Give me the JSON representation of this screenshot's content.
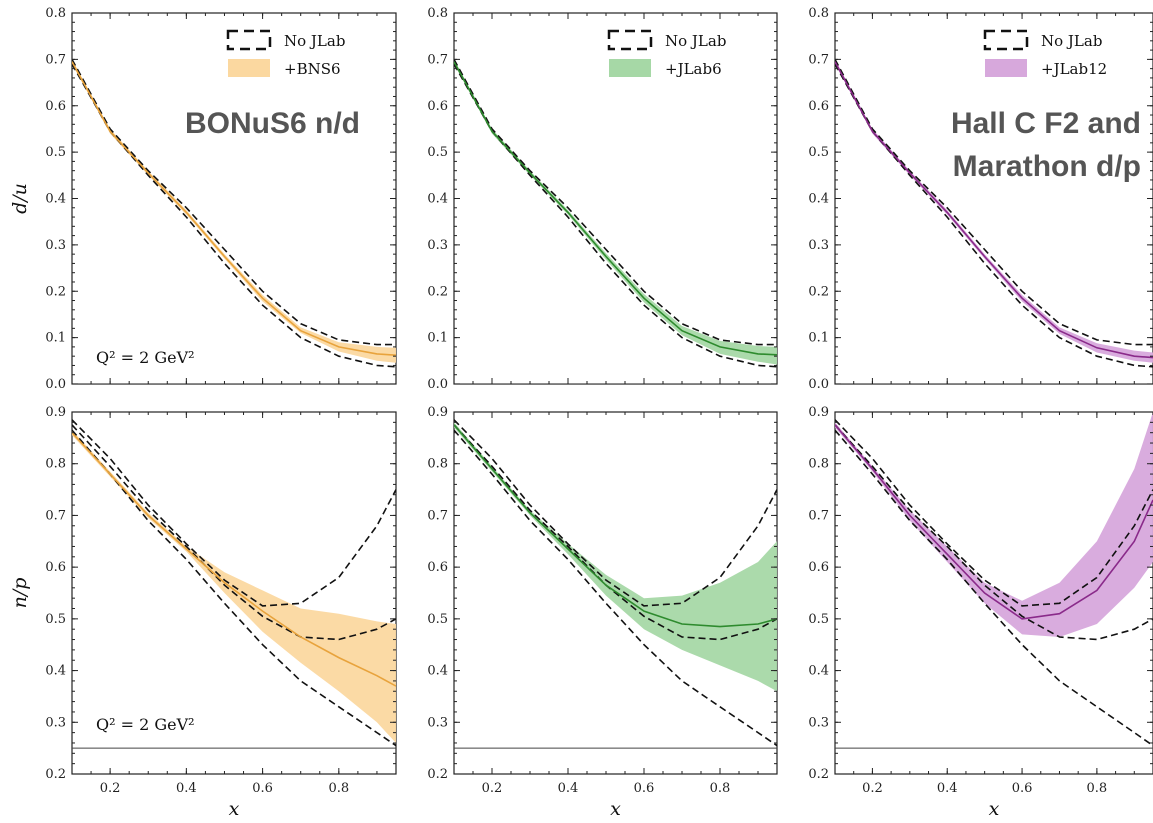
{
  "figure": {
    "x_axis_label": "x",
    "overlay_texts": [
      {
        "panel": 0,
        "lines": [
          "BONuS6 n/d"
        ]
      },
      {
        "panel": 2,
        "lines": [
          "Hall C F2 and",
          "Marathon d/p"
        ]
      }
    ]
  },
  "chart_data": [
    {
      "type": "line",
      "row": "top",
      "ylabel": "d/u",
      "xlim": [
        0.1,
        0.95
      ],
      "ylim": [
        0.0,
        0.8
      ],
      "xticks": [
        0.2,
        0.4,
        0.6,
        0.8
      ],
      "yticks": [
        0.0,
        0.1,
        0.2,
        0.3,
        0.4,
        0.5,
        0.6,
        0.7,
        0.8
      ],
      "annotation": "Q² = 2 GeV²",
      "legend": {
        "position": "top-right",
        "entries": [
          "No JLab",
          "+BNS6"
        ]
      },
      "color": "#e8a33c",
      "fill": "#fbd8a0",
      "series": [
        {
          "style": "dashed",
          "x": [
            0.1,
            0.2,
            0.3,
            0.4,
            0.5,
            0.6,
            0.7,
            0.8,
            0.9,
            0.95
          ],
          "y": [
            0.7,
            0.55,
            0.46,
            0.38,
            0.29,
            0.2,
            0.13,
            0.095,
            0.085,
            0.085
          ]
        },
        {
          "style": "dashed",
          "x": [
            0.1,
            0.2,
            0.3,
            0.4,
            0.5,
            0.6,
            0.7,
            0.8,
            0.9,
            0.95
          ],
          "y": [
            0.69,
            0.545,
            0.45,
            0.36,
            0.26,
            0.17,
            0.1,
            0.06,
            0.04,
            0.037
          ]
        },
        {
          "name": "+BNS6",
          "style": "solid",
          "x": [
            0.1,
            0.2,
            0.3,
            0.4,
            0.5,
            0.6,
            0.7,
            0.8,
            0.9,
            0.95
          ],
          "y": [
            0.695,
            0.545,
            0.455,
            0.37,
            0.275,
            0.185,
            0.115,
            0.08,
            0.065,
            0.062
          ],
          "lower": [
            0.69,
            0.54,
            0.45,
            0.365,
            0.27,
            0.178,
            0.11,
            0.07,
            0.05,
            0.046
          ],
          "upper": [
            0.7,
            0.55,
            0.46,
            0.375,
            0.28,
            0.192,
            0.122,
            0.09,
            0.08,
            0.078
          ]
        }
      ]
    },
    {
      "type": "line",
      "row": "top",
      "ylabel": "",
      "xlim": [
        0.1,
        0.95
      ],
      "ylim": [
        0.0,
        0.8
      ],
      "xticks": [
        0.2,
        0.4,
        0.6,
        0.8
      ],
      "yticks": [
        0.0,
        0.1,
        0.2,
        0.3,
        0.4,
        0.5,
        0.6,
        0.7,
        0.8
      ],
      "annotation": "",
      "legend": {
        "position": "top-right",
        "entries": [
          "No JLab",
          "+JLab6"
        ]
      },
      "color": "#2e8b2e",
      "fill": "#a6d8a6",
      "series": [
        {
          "style": "dashed",
          "x": [
            0.1,
            0.2,
            0.3,
            0.4,
            0.5,
            0.6,
            0.7,
            0.8,
            0.9,
            0.95
          ],
          "y": [
            0.7,
            0.55,
            0.46,
            0.38,
            0.29,
            0.2,
            0.13,
            0.095,
            0.085,
            0.085
          ]
        },
        {
          "style": "dashed",
          "x": [
            0.1,
            0.2,
            0.3,
            0.4,
            0.5,
            0.6,
            0.7,
            0.8,
            0.9,
            0.95
          ],
          "y": [
            0.69,
            0.545,
            0.45,
            0.36,
            0.26,
            0.17,
            0.1,
            0.06,
            0.04,
            0.037
          ]
        },
        {
          "name": "+JLab6",
          "style": "solid",
          "x": [
            0.1,
            0.2,
            0.3,
            0.4,
            0.5,
            0.6,
            0.7,
            0.8,
            0.9,
            0.95
          ],
          "y": [
            0.695,
            0.545,
            0.455,
            0.37,
            0.275,
            0.185,
            0.115,
            0.08,
            0.065,
            0.063
          ],
          "lower": [
            0.69,
            0.54,
            0.45,
            0.365,
            0.268,
            0.176,
            0.105,
            0.065,
            0.048,
            0.042
          ],
          "upper": [
            0.7,
            0.55,
            0.46,
            0.375,
            0.282,
            0.194,
            0.125,
            0.093,
            0.082,
            0.08
          ]
        }
      ]
    },
    {
      "type": "line",
      "row": "top",
      "ylabel": "",
      "xlim": [
        0.1,
        0.95
      ],
      "ylim": [
        0.0,
        0.8
      ],
      "xticks": [
        0.2,
        0.4,
        0.6,
        0.8
      ],
      "yticks": [
        0.0,
        0.1,
        0.2,
        0.3,
        0.4,
        0.5,
        0.6,
        0.7,
        0.8
      ],
      "annotation": "",
      "legend": {
        "position": "top-right",
        "entries": [
          "No JLab",
          "+JLab12"
        ]
      },
      "color": "#8a2a8a",
      "fill": "#d7a8dc",
      "series": [
        {
          "style": "dashed",
          "x": [
            0.1,
            0.2,
            0.3,
            0.4,
            0.5,
            0.6,
            0.7,
            0.8,
            0.9,
            0.95
          ],
          "y": [
            0.7,
            0.55,
            0.46,
            0.38,
            0.29,
            0.2,
            0.13,
            0.095,
            0.085,
            0.085
          ]
        },
        {
          "style": "dashed",
          "x": [
            0.1,
            0.2,
            0.3,
            0.4,
            0.5,
            0.6,
            0.7,
            0.8,
            0.9,
            0.95
          ],
          "y": [
            0.69,
            0.545,
            0.45,
            0.36,
            0.26,
            0.17,
            0.1,
            0.06,
            0.04,
            0.037
          ]
        },
        {
          "name": "+JLab12",
          "style": "solid",
          "x": [
            0.1,
            0.2,
            0.3,
            0.4,
            0.5,
            0.6,
            0.7,
            0.8,
            0.9,
            0.95
          ],
          "y": [
            0.695,
            0.545,
            0.455,
            0.37,
            0.275,
            0.185,
            0.115,
            0.078,
            0.06,
            0.057
          ],
          "lower": [
            0.69,
            0.54,
            0.45,
            0.365,
            0.27,
            0.178,
            0.108,
            0.068,
            0.05,
            0.046
          ],
          "upper": [
            0.7,
            0.55,
            0.46,
            0.375,
            0.28,
            0.192,
            0.122,
            0.088,
            0.072,
            0.068
          ]
        }
      ]
    },
    {
      "type": "line",
      "row": "bottom",
      "ylabel": "n/p",
      "xlim": [
        0.1,
        0.95
      ],
      "ylim": [
        0.2,
        0.9
      ],
      "xticks": [
        0.2,
        0.4,
        0.6,
        0.8
      ],
      "yticks": [
        0.2,
        0.3,
        0.4,
        0.5,
        0.6,
        0.7,
        0.8,
        0.9
      ],
      "annotation": "Q² = 2 GeV²",
      "hline": 0.25,
      "color": "#e8a33c",
      "fill": "#fbd8a0",
      "series": [
        {
          "style": "dashed",
          "x": [
            0.1,
            0.2,
            0.3,
            0.4,
            0.5,
            0.6,
            0.7,
            0.8,
            0.9,
            0.95
          ],
          "y": [
            0.885,
            0.81,
            0.72,
            0.645,
            0.575,
            0.525,
            0.53,
            0.58,
            0.68,
            0.75
          ]
        },
        {
          "style": "dashed",
          "x": [
            0.1,
            0.2,
            0.3,
            0.4,
            0.5,
            0.6,
            0.7,
            0.8,
            0.9,
            0.95
          ],
          "y": [
            0.875,
            0.795,
            0.71,
            0.64,
            0.565,
            0.505,
            0.465,
            0.46,
            0.48,
            0.5
          ]
        },
        {
          "style": "dashed",
          "x": [
            0.1,
            0.2,
            0.3,
            0.4,
            0.5,
            0.6,
            0.7,
            0.8,
            0.9,
            0.95
          ],
          "y": [
            0.865,
            0.78,
            0.69,
            0.615,
            0.53,
            0.45,
            0.38,
            0.33,
            0.28,
            0.255
          ]
        },
        {
          "name": "+BNS6",
          "style": "solid",
          "x": [
            0.1,
            0.2,
            0.3,
            0.4,
            0.5,
            0.6,
            0.7,
            0.8,
            0.9,
            0.95
          ],
          "y": [
            0.86,
            0.78,
            0.7,
            0.635,
            0.57,
            0.515,
            0.465,
            0.425,
            0.39,
            0.37
          ],
          "lower": [
            0.855,
            0.775,
            0.695,
            0.63,
            0.55,
            0.475,
            0.415,
            0.36,
            0.3,
            0.26
          ],
          "upper": [
            0.865,
            0.785,
            0.705,
            0.64,
            0.59,
            0.555,
            0.52,
            0.51,
            0.495,
            0.49
          ]
        }
      ]
    },
    {
      "type": "line",
      "row": "bottom",
      "ylabel": "",
      "xlim": [
        0.1,
        0.95
      ],
      "ylim": [
        0.2,
        0.9
      ],
      "xticks": [
        0.2,
        0.4,
        0.6,
        0.8
      ],
      "yticks": [
        0.2,
        0.3,
        0.4,
        0.5,
        0.6,
        0.7,
        0.8,
        0.9
      ],
      "annotation": "",
      "hline": 0.25,
      "color": "#2e8b2e",
      "fill": "#a6d8a6",
      "series": [
        {
          "style": "dashed",
          "x": [
            0.1,
            0.2,
            0.3,
            0.4,
            0.5,
            0.6,
            0.7,
            0.8,
            0.9,
            0.95
          ],
          "y": [
            0.885,
            0.81,
            0.72,
            0.645,
            0.575,
            0.525,
            0.53,
            0.58,
            0.68,
            0.75
          ]
        },
        {
          "style": "dashed",
          "x": [
            0.1,
            0.2,
            0.3,
            0.4,
            0.5,
            0.6,
            0.7,
            0.8,
            0.9,
            0.95
          ],
          "y": [
            0.875,
            0.795,
            0.71,
            0.64,
            0.565,
            0.505,
            0.465,
            0.46,
            0.48,
            0.5
          ]
        },
        {
          "style": "dashed",
          "x": [
            0.1,
            0.2,
            0.3,
            0.4,
            0.5,
            0.6,
            0.7,
            0.8,
            0.9,
            0.95
          ],
          "y": [
            0.865,
            0.78,
            0.69,
            0.615,
            0.53,
            0.45,
            0.38,
            0.33,
            0.28,
            0.255
          ]
        },
        {
          "name": "+JLab6",
          "style": "solid",
          "x": [
            0.1,
            0.2,
            0.3,
            0.4,
            0.5,
            0.6,
            0.7,
            0.8,
            0.9,
            0.95
          ],
          "y": [
            0.875,
            0.79,
            0.705,
            0.635,
            0.565,
            0.515,
            0.49,
            0.485,
            0.49,
            0.5
          ],
          "lower": [
            0.87,
            0.785,
            0.7,
            0.625,
            0.545,
            0.48,
            0.44,
            0.41,
            0.38,
            0.36
          ],
          "upper": [
            0.88,
            0.795,
            0.71,
            0.645,
            0.585,
            0.54,
            0.545,
            0.57,
            0.61,
            0.65
          ]
        }
      ]
    },
    {
      "type": "line",
      "row": "bottom",
      "ylabel": "",
      "xlim": [
        0.1,
        0.95
      ],
      "ylim": [
        0.2,
        0.9
      ],
      "xticks": [
        0.2,
        0.4,
        0.6,
        0.8
      ],
      "yticks": [
        0.2,
        0.3,
        0.4,
        0.5,
        0.6,
        0.7,
        0.8,
        0.9
      ],
      "annotation": "",
      "hline": 0.25,
      "color": "#8a2a8a",
      "fill": "#d7a8dc",
      "series": [
        {
          "style": "dashed",
          "x": [
            0.1,
            0.2,
            0.3,
            0.4,
            0.5,
            0.6,
            0.7,
            0.8,
            0.9,
            0.95
          ],
          "y": [
            0.885,
            0.81,
            0.72,
            0.645,
            0.575,
            0.525,
            0.53,
            0.58,
            0.68,
            0.75
          ]
        },
        {
          "style": "dashed",
          "x": [
            0.1,
            0.2,
            0.3,
            0.4,
            0.5,
            0.6,
            0.7,
            0.8,
            0.9,
            0.95
          ],
          "y": [
            0.875,
            0.795,
            0.71,
            0.64,
            0.565,
            0.505,
            0.465,
            0.46,
            0.48,
            0.5
          ]
        },
        {
          "style": "dashed",
          "x": [
            0.1,
            0.2,
            0.3,
            0.4,
            0.5,
            0.6,
            0.7,
            0.8,
            0.9,
            0.95
          ],
          "y": [
            0.865,
            0.78,
            0.69,
            0.615,
            0.53,
            0.45,
            0.38,
            0.33,
            0.28,
            0.255
          ]
        },
        {
          "name": "+JLab12",
          "style": "solid",
          "x": [
            0.1,
            0.2,
            0.3,
            0.4,
            0.5,
            0.6,
            0.7,
            0.8,
            0.9,
            0.95
          ],
          "y": [
            0.875,
            0.79,
            0.7,
            0.625,
            0.55,
            0.5,
            0.51,
            0.555,
            0.65,
            0.73
          ],
          "lower": [
            0.87,
            0.785,
            0.69,
            0.61,
            0.53,
            0.47,
            0.465,
            0.49,
            0.56,
            0.61
          ],
          "upper": [
            0.88,
            0.795,
            0.71,
            0.64,
            0.57,
            0.535,
            0.57,
            0.65,
            0.79,
            0.9
          ]
        }
      ]
    }
  ]
}
